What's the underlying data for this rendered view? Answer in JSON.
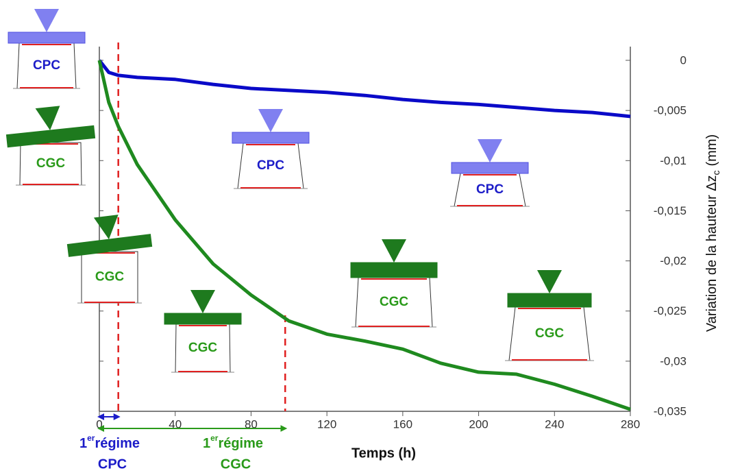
{
  "chart_data": {
    "type": "line",
    "x": [
      0,
      5,
      10,
      20,
      40,
      60,
      80,
      100,
      120,
      140,
      160,
      180,
      200,
      220,
      240,
      260,
      280
    ],
    "series": [
      {
        "color": "#0a0ac8",
        "values": [
          0,
          -0.0012,
          -0.0015,
          -0.0017,
          -0.0019,
          -0.0024,
          -0.0028,
          -0.003,
          -0.0032,
          -0.0035,
          -0.0039,
          -0.0042,
          -0.0044,
          -0.0047,
          -0.005,
          -0.0052,
          -0.0056
        ]
      },
      {
        "color": "#1f8a1f",
        "values": [
          0,
          -0.0042,
          -0.0066,
          -0.0104,
          -0.0159,
          -0.0203,
          -0.0234,
          -0.026,
          -0.0273,
          -0.028,
          -0.0288,
          -0.0302,
          -0.0311,
          -0.0313,
          -0.0323,
          -0.0335,
          -0.0348
        ]
      }
    ],
    "xlim": [
      0,
      280
    ],
    "xticks": [
      0,
      40,
      80,
      120,
      160,
      200,
      240,
      280
    ],
    "ylim": [
      -0.035,
      0
    ],
    "yticks": [
      0,
      {
        "value": -0.005,
        "label": "-0,005"
      },
      {
        "value": -0.01,
        "label": "-0,01"
      },
      {
        "value": -0.015,
        "label": "-0,015"
      },
      {
        "value": -0.02,
        "label": "-0,02"
      },
      {
        "value": -0.025,
        "label": "-0,025"
      },
      {
        "value": -0.03,
        "label": "-0,03"
      },
      {
        "value": -0.035,
        "label": "-0,035"
      }
    ],
    "xlabel": "Temps (h)",
    "ylabel": {
      "main": "Variation de la hauteur Δz",
      "sub": "c",
      "unit": "(mm)"
    },
    "regime_lines": [
      10,
      98
    ],
    "regimes": [
      {
        "num": "1",
        "sup": "er",
        "text": "régime",
        "name": "CPC",
        "color": "#1c1cc8"
      },
      {
        "num": "1",
        "sup": "er",
        "text": "régime",
        "name": "CGC",
        "color": "#2a9a1a"
      }
    ],
    "diagram_labels": [
      "CPC",
      "CGC",
      "CGC",
      "CGC",
      "CPC",
      "CPC",
      "CGC",
      "CGC"
    ]
  }
}
